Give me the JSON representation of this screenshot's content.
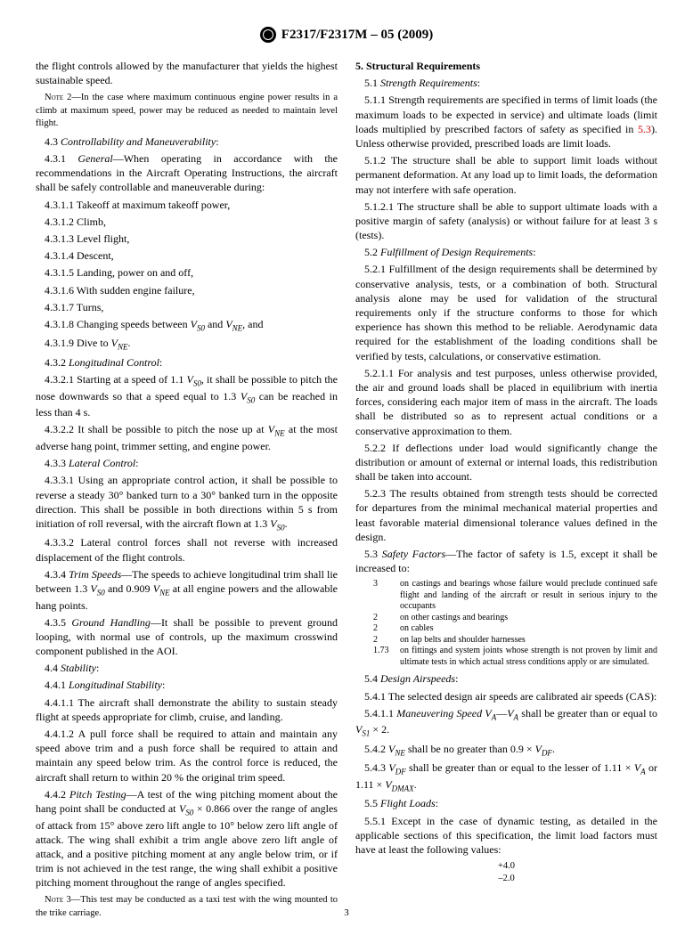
{
  "header": {
    "designation": "F2317/F2317M – 05 (2009)"
  },
  "left": {
    "p1": "the flight controls allowed by the manufacturer that yields the highest sustainable speed.",
    "note2_label": "Note",
    "note2": " 2—In the case where maximum continuous engine power results in a climb at maximum speed, power may be reduced as needed to maintain level flight.",
    "s43": "4.3 ",
    "s43_title": "Controllability and Maneuverability",
    "p431a": "4.3.1 ",
    "p431a_title": "General",
    "p431b": "—When operating in accordance with the recommendations in the Aircraft Operating Instructions, the aircraft shall be safely controllable and maneuverable during:",
    "l4311": "4.3.1.1 Takeoff at maximum takeoff power,",
    "l4312": "4.3.1.2 Climb,",
    "l4313": "4.3.1.3 Level flight,",
    "l4314": "4.3.1.4 Descent,",
    "l4315": "4.3.1.5 Landing, power on and off,",
    "l4316": "4.3.1.6 With sudden engine failure,",
    "l4317": "4.3.1.7 Turns,",
    "l4318a": "4.3.1.8 Changing speeds between ",
    "l4318b": " and ",
    "l4318c": ", and",
    "l4319a": "4.3.1.9 Dive to ",
    "s432": "4.3.2 ",
    "s432_title": "Longitudinal Control",
    "p4321a": "4.3.2.1 Starting at a speed of 1.1 ",
    "p4321b": ", it shall be possible to pitch the nose downwards so that a speed equal to 1.3 ",
    "p4321c": " can be reached in less than 4 s.",
    "p4322a": "4.3.2.2 It shall be possible to pitch the nose up at ",
    "p4322b": " at the most adverse hang point, trimmer setting, and engine power.",
    "s433": "4.3.3 ",
    "s433_title": "Lateral Control",
    "p4331a": "4.3.3.1 Using an appropriate control action, it shall be possible to reverse a steady 30° banked turn to a 30° banked turn in the opposite direction. This shall be possible in both directions within 5 s from initiation of roll reversal, with the aircraft flown at 1.3 ",
    "p4332": "4.3.3.2 Lateral control forces shall not reverse with increased displacement of the flight controls.",
    "s434": "4.3.4 ",
    "s434_title": "Trim Speeds",
    "p434a": "—The speeds to achieve longitudinal trim shall lie between 1.3 ",
    "p434b": " and 0.909 ",
    "p434c": " at all engine powers and the allowable hang points.",
    "s435": "4.3.5 ",
    "s435_title": "Ground Handling",
    "p435": "—It shall be possible to prevent ground looping, with normal use of controls, up the maximum crosswind component published in the AOI.",
    "s44": "4.4 ",
    "s44_title": "Stability",
    "s441": "4.4.1 ",
    "s441_title": "Longitudinal Stability",
    "p4411": "4.4.1.1 The aircraft shall demonstrate the ability to sustain steady flight at speeds appropriate for climb, cruise, and landing.",
    "p4412": "4.4.1.2 A pull force shall be required to attain and maintain any speed above trim and a push force shall be required to attain and maintain any speed below trim. As the control force is reduced, the aircraft shall return to within 20 % the original trim speed.",
    "s442": "4.4.2 ",
    "s442_title": "Pitch Testing",
    "p442a": "—A test of the wing pitching moment about the hang point shall be conducted at ",
    "p442b": " × 0.866 over the range of angles of attack from 15° above zero lift angle to 10° below zero lift angle of attack. The wing shall exhibit a trim angle above zero lift angle of attack, and a positive pitching moment at any angle below trim, or if trim is not achieved in the test range, the wing shall exhibit a positive pitching moment throughout the range of angles specified.",
    "note3_label": "Note",
    "note3": " 3—This test may be conducted as a taxi test with the wing mounted to the trike carriage."
  },
  "right": {
    "s5": "5. Structural Requirements",
    "s51": "5.1 ",
    "s51_title": "Strength Requirements",
    "p511a": "5.1.1 Strength requirements are specified in terms of limit loads (the maximum loads to be expected in service) and ultimate loads (limit loads multiplied by prescribed factors of safety as specified in ",
    "p511_ref": "5.3",
    "p511b": "). Unless otherwise provided, prescribed loads are limit loads.",
    "p512": "5.1.2 The structure shall be able to support limit loads without permanent deformation. At any load up to limit loads, the deformation may not interfere with safe operation.",
    "p5121": "5.1.2.1 The structure shall be able to support ultimate loads with a positive margin of safety (analysis) or without failure for at least 3 s (tests).",
    "s52": "5.2 ",
    "s52_title": "Fulfillment of Design Requirements",
    "p521": "5.2.1 Fulfillment of the design requirements shall be determined by conservative analysis, tests, or a combination of both. Structural analysis alone may be used for validation of the structural requirements only if the structure conforms to those for which experience has shown this method to be reliable. Aerodynamic data required for the establishment of the loading conditions shall be verified by tests, calculations, or conservative estimation.",
    "p5211": "5.2.1.1 For analysis and test purposes, unless otherwise provided, the air and ground loads shall be placed in equilibrium with inertia forces, considering each major item of mass in the aircraft. The loads shall be distributed so as to represent actual conditions or a conservative approximation to them.",
    "p522": "5.2.2 If deflections under load would significantly change the distribution or amount of external or internal loads, this redistribution shall be taken into account.",
    "p523": "5.2.3 The results obtained from strength tests should be corrected for departures from the minimal mechanical material properties and least favorable material dimensional tolerance values defined in the design.",
    "s53": "5.3 ",
    "s53_title": "Safety Factors",
    "p53": "—The factor of safety is 1.5, except it shall be increased to:",
    "sf": [
      {
        "k": "3",
        "v": "on castings and bearings whose failure would preclude continued safe flight and landing of the aircraft or result in serious injury to the occupants"
      },
      {
        "k": "2",
        "v": "on other castings and bearings"
      },
      {
        "k": "2",
        "v": "on cables"
      },
      {
        "k": "2",
        "v": "on lap belts and shoulder harnesses"
      },
      {
        "k": "1.73",
        "v": "on fittings and system joints whose strength is not proven by limit and ultimate tests in which actual stress conditions apply or are simulated."
      }
    ],
    "s54": "5.4 ",
    "s54_title": "Design Airspeeds",
    "p541": "5.4.1 The selected design air speeds are calibrated air speeds (CAS):",
    "s5411": "5.4.1.1 ",
    "s5411_title": "Maneuvering Speed V",
    "s5411_sub": "A",
    "p5411a": "—",
    "p5411b": " shall be greater than or equal to ",
    "p5411c": " × 2.",
    "p542a": "5.4.2 ",
    "p542b": " shall be no greater than 0.9 × ",
    "p543a": "5.4.3 ",
    "p543b": " shall be greater than or equal to the lesser of 1.11 × ",
    "p543c": " or 1.11 × ",
    "s55": "5.5 ",
    "s55_title": "Flight Loads",
    "p551": "5.5.1 Except in the case of dynamic testing, as detailed in the applicable sections of this specification, the limit load factors must have at least the following values:",
    "lf1": "+4.0",
    "lf2": "–2.0"
  },
  "pagenum": "3",
  "vars": {
    "VSO": "V",
    "VSO_sub": "S0",
    "VNE": "V",
    "VNE_sub": "NE",
    "VA": "V",
    "VA_sub": "A",
    "VS1": "V",
    "VS1_sub": "S1",
    "VDF": "V",
    "VDF_sub": "DF",
    "VDMAX": "V",
    "VDMAX_sub": "DMAX"
  }
}
